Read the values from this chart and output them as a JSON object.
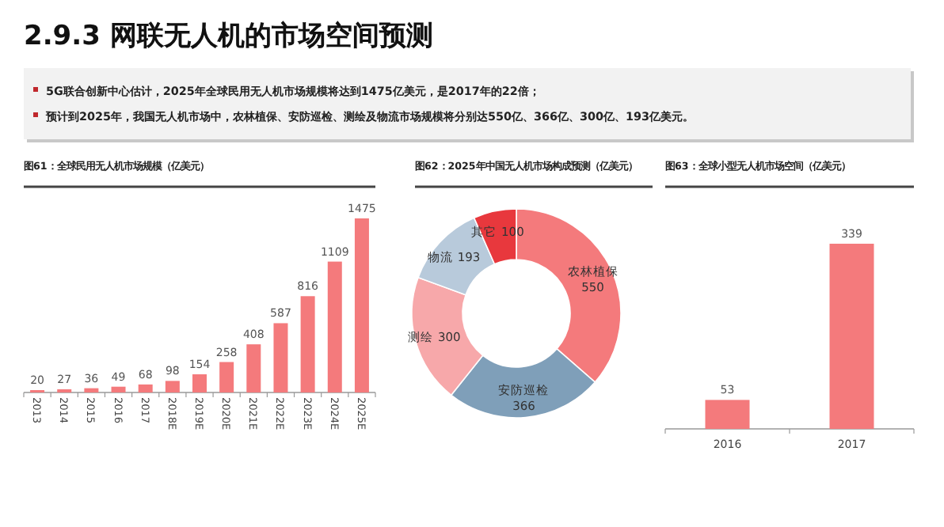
{
  "chart_data": [
    {
      "type": "other",
      "title": "2.9.3  网联无人机的市场空间预测",
      "annotations": [
        "5G联合创新中心估计，2025年全球民用无人机市场规模将达到1475亿美元，是2017年的22倍；",
        "预计到2025年，我国无人机市场中，农林植保、安防巡检、测绘及物流市场规模将分别达550亿、366亿、300亿、193亿美元。"
      ]
    },
    {
      "type": "bar",
      "title": "图61：全球民用无人机市场规模（亿美元）",
      "categories": [
        "2013",
        "2014",
        "2015",
        "2016",
        "2017",
        "2018E",
        "2019E",
        "2020E",
        "2021E",
        "2022E",
        "2023E",
        "2024E",
        "2025E"
      ],
      "values": [
        20,
        27,
        36,
        49,
        68,
        98,
        154,
        258,
        408,
        587,
        816,
        1109,
        1475
      ],
      "color": "#f47a7c",
      "data_labels": true
    },
    {
      "type": "donut",
      "title": "图62：2025年中国无人机市场构成预测（亿美元）",
      "categories": [
        "农林植保",
        "安防巡检",
        "测绘",
        "物流",
        "其它"
      ],
      "values": [
        550,
        366,
        300,
        193,
        100
      ],
      "colors": [
        "#f47a7c",
        "#7f9fb9",
        "#f7a8aa",
        "#b8cadb",
        "#e8383d"
      ],
      "data_labels": true
    },
    {
      "type": "bar",
      "title": "图63：全球小型无人机市场空间（亿美元）",
      "categories": [
        "2016",
        "2017"
      ],
      "values": [
        53,
        339
      ],
      "color": "#f47a7c",
      "data_labels": true
    }
  ]
}
